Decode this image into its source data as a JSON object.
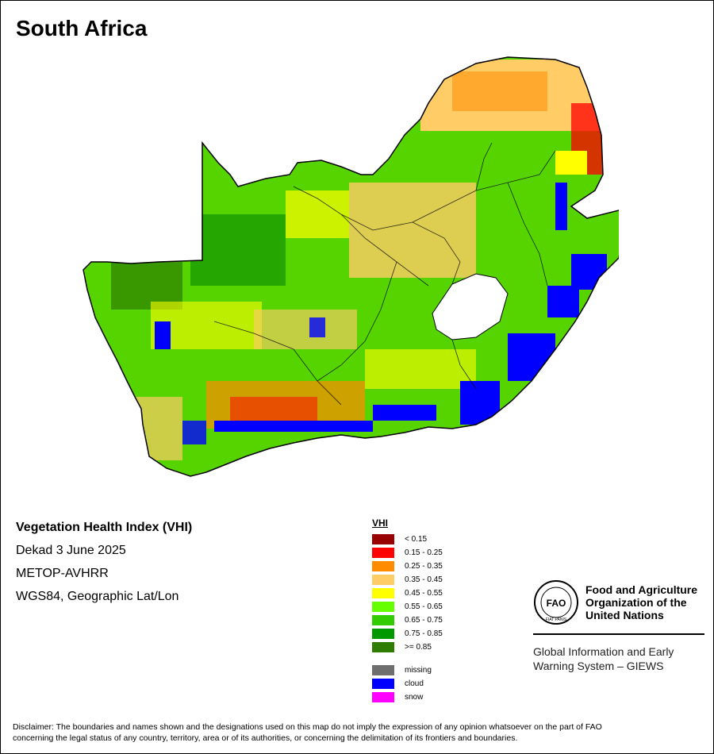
{
  "title": "South Africa",
  "map_info": {
    "index_name": "Vegetation Health Index (VHI)",
    "period": "Dekad 3 June 2025",
    "sensor": "METOP-AVHRR",
    "projection": "WGS84, Geographic Lat/Lon"
  },
  "legend": {
    "title": "VHI",
    "classes": [
      {
        "label": "< 0.15",
        "color": "#990000"
      },
      {
        "label": "0.15 - 0.25",
        "color": "#ff0000"
      },
      {
        "label": "0.25 - 0.35",
        "color": "#ff8c00"
      },
      {
        "label": "0.35 - 0.45",
        "color": "#ffcc66"
      },
      {
        "label": "0.45 - 0.55",
        "color": "#ffff00"
      },
      {
        "label": "0.55 - 0.65",
        "color": "#66ff00"
      },
      {
        "label": "0.65 - 0.75",
        "color": "#33cc00"
      },
      {
        "label": "0.75 - 0.85",
        "color": "#009900"
      },
      {
        "label": ">= 0.85",
        "color": "#2e7d00"
      }
    ],
    "extra": [
      {
        "label": "missing",
        "color": "#6e6e6e"
      },
      {
        "label": "cloud",
        "color": "#0000ff"
      },
      {
        "label": "snow",
        "color": "#ff00ff"
      }
    ]
  },
  "fao": {
    "org_line1": "Food and Agriculture",
    "org_line2": "Organization of the",
    "org_line3": "United Nations",
    "logo_letters": "FAO",
    "logo_motto": "FIAT PANIS",
    "giews_line1": "Global Information and Early",
    "giews_line2": "Warning System – GIEWS"
  },
  "disclaimer_line1": "Disclaimer: The boundaries and names shown and the designations used on this map do not imply the expression of any opinion whatsoever on the part of FAO",
  "disclaimer_line2": "concerning the legal status of any country, territory, area or of its authorities, or concerning the delimitation of its frontiers and boundaries."
}
